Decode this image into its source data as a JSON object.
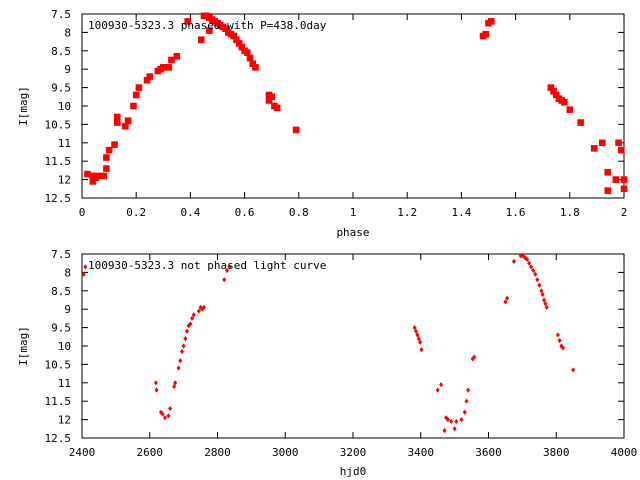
{
  "chart_data": [
    {
      "type": "scatter",
      "title": "100930-5323.3 phased with P=438.0day",
      "xlabel": "phase",
      "ylabel": "I[mag]",
      "xlim": [
        0,
        2
      ],
      "ylim": [
        7.5,
        12.5
      ],
      "y_inverted": true,
      "xticks": [
        "0",
        "0.2",
        "0.4",
        "0.6",
        "0.8",
        "1",
        "1.2",
        "1.4",
        "1.6",
        "1.8",
        "2"
      ],
      "yticks": [
        "7.5",
        "8",
        "8.5",
        "9",
        "9.5",
        "10",
        "10.5",
        "11",
        "11.5",
        "12",
        "12.5"
      ],
      "marker_color": "#ff0000",
      "marker": "large",
      "points": [
        [
          0.02,
          11.85
        ],
        [
          0.04,
          11.9
        ],
        [
          0.04,
          12.05
        ],
        [
          0.05,
          11.95
        ],
        [
          0.06,
          11.9
        ],
        [
          0.08,
          11.9
        ],
        [
          0.09,
          11.7
        ],
        [
          0.09,
          11.4
        ],
        [
          0.1,
          11.2
        ],
        [
          0.12,
          11.05
        ],
        [
          0.13,
          10.45
        ],
        [
          0.13,
          10.3
        ],
        [
          0.16,
          10.55
        ],
        [
          0.17,
          10.4
        ],
        [
          0.19,
          10.0
        ],
        [
          0.2,
          9.7
        ],
        [
          0.21,
          9.5
        ],
        [
          0.24,
          9.3
        ],
        [
          0.25,
          9.2
        ],
        [
          0.28,
          9.05
        ],
        [
          0.29,
          9.0
        ],
        [
          0.3,
          8.95
        ],
        [
          0.32,
          8.95
        ],
        [
          0.33,
          8.75
        ],
        [
          0.35,
          8.65
        ],
        [
          0.39,
          7.7
        ],
        [
          0.44,
          8.2
        ],
        [
          0.45,
          7.55
        ],
        [
          0.46,
          7.55
        ],
        [
          0.47,
          7.6
        ],
        [
          0.47,
          7.95
        ],
        [
          0.48,
          7.65
        ],
        [
          0.49,
          7.7
        ],
        [
          0.5,
          7.75
        ],
        [
          0.51,
          7.8
        ],
        [
          0.52,
          7.85
        ],
        [
          0.53,
          7.9
        ],
        [
          0.54,
          8.0
        ],
        [
          0.55,
          8.05
        ],
        [
          0.56,
          8.1
        ],
        [
          0.57,
          8.2
        ],
        [
          0.58,
          8.3
        ],
        [
          0.59,
          8.4
        ],
        [
          0.6,
          8.5
        ],
        [
          0.61,
          8.55
        ],
        [
          0.62,
          8.7
        ],
        [
          0.63,
          8.85
        ],
        [
          0.64,
          8.95
        ],
        [
          0.69,
          9.7
        ],
        [
          0.69,
          9.85
        ],
        [
          0.7,
          9.75
        ],
        [
          0.71,
          10.0
        ],
        [
          0.72,
          10.05
        ],
        [
          0.79,
          10.65
        ],
        [
          1.48,
          8.1
        ],
        [
          1.49,
          8.05
        ],
        [
          1.5,
          7.75
        ],
        [
          1.51,
          7.7
        ],
        [
          1.73,
          9.5
        ],
        [
          1.74,
          9.6
        ],
        [
          1.75,
          9.7
        ],
        [
          1.76,
          9.8
        ],
        [
          1.77,
          9.85
        ],
        [
          1.78,
          9.9
        ],
        [
          1.8,
          10.1
        ],
        [
          1.84,
          10.45
        ],
        [
          1.89,
          11.15
        ],
        [
          1.92,
          11.0
        ],
        [
          1.94,
          11.8
        ],
        [
          1.94,
          12.3
        ],
        [
          1.97,
          12.0
        ],
        [
          1.98,
          11.0
        ],
        [
          1.99,
          11.2
        ],
        [
          2.0,
          12.0
        ],
        [
          2.0,
          12.25
        ]
      ]
    },
    {
      "type": "scatter",
      "title": "100930-5323.3 not phased light curve",
      "xlabel": "hjd0",
      "ylabel": "I[mag]",
      "xlim": [
        2400,
        4000
      ],
      "ylim": [
        7.5,
        12.5
      ],
      "y_inverted": true,
      "xticks": [
        "2400",
        "2600",
        "2800",
        "3000",
        "3200",
        "3400",
        "3600",
        "3800",
        "4000"
      ],
      "yticks": [
        "7.5",
        "8",
        "8.5",
        "9",
        "9.5",
        "10",
        "10.5",
        "11",
        "11.5",
        "12",
        "12.5"
      ],
      "marker_color": "#ff0000",
      "marker": "small",
      "points": [
        [
          2405,
          8.05
        ],
        [
          2410,
          7.85
        ],
        [
          2618,
          11.0
        ],
        [
          2620,
          11.2
        ],
        [
          2633,
          11.8
        ],
        [
          2638,
          11.85
        ],
        [
          2645,
          11.95
        ],
        [
          2655,
          11.9
        ],
        [
          2660,
          11.7
        ],
        [
          2672,
          11.1
        ],
        [
          2675,
          11.0
        ],
        [
          2685,
          10.6
        ],
        [
          2690,
          10.4
        ],
        [
          2695,
          10.15
        ],
        [
          2700,
          10.0
        ],
        [
          2705,
          9.8
        ],
        [
          2710,
          9.6
        ],
        [
          2715,
          9.45
        ],
        [
          2720,
          9.4
        ],
        [
          2725,
          9.25
        ],
        [
          2730,
          9.15
        ],
        [
          2745,
          9.05
        ],
        [
          2750,
          8.95
        ],
        [
          2755,
          9.0
        ],
        [
          2760,
          8.95
        ],
        [
          2820,
          8.2
        ],
        [
          2828,
          7.95
        ],
        [
          2835,
          7.85
        ],
        [
          3382,
          9.5
        ],
        [
          3386,
          9.6
        ],
        [
          3390,
          9.7
        ],
        [
          3394,
          9.8
        ],
        [
          3398,
          9.9
        ],
        [
          3402,
          10.1
        ],
        [
          3450,
          11.2
        ],
        [
          3460,
          11.05
        ],
        [
          3470,
          12.3
        ],
        [
          3475,
          11.95
        ],
        [
          3480,
          12.0
        ],
        [
          3490,
          12.05
        ],
        [
          3500,
          12.25
        ],
        [
          3505,
          12.05
        ],
        [
          3520,
          12.0
        ],
        [
          3530,
          11.8
        ],
        [
          3535,
          11.5
        ],
        [
          3540,
          11.2
        ],
        [
          3553,
          10.35
        ],
        [
          3558,
          10.3
        ],
        [
          3650,
          8.8
        ],
        [
          3655,
          8.7
        ],
        [
          3675,
          7.7
        ],
        [
          3695,
          7.55
        ],
        [
          3702,
          7.55
        ],
        [
          3708,
          7.6
        ],
        [
          3714,
          7.65
        ],
        [
          3720,
          7.75
        ],
        [
          3726,
          7.85
        ],
        [
          3732,
          7.95
        ],
        [
          3738,
          8.05
        ],
        [
          3744,
          8.2
        ],
        [
          3750,
          8.35
        ],
        [
          3756,
          8.5
        ],
        [
          3760,
          8.6
        ],
        [
          3764,
          8.75
        ],
        [
          3768,
          8.85
        ],
        [
          3772,
          8.95
        ],
        [
          3805,
          9.7
        ],
        [
          3810,
          9.85
        ],
        [
          3815,
          10.0
        ],
        [
          3820,
          10.05
        ],
        [
          3850,
          10.65
        ]
      ]
    }
  ]
}
